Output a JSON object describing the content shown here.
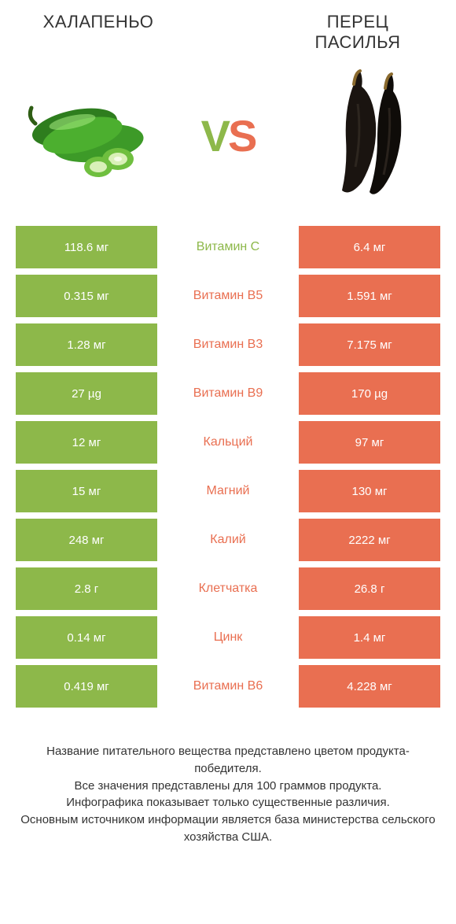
{
  "header": {
    "left_title": "ХАЛАПЕНЬО",
    "right_title": "ПЕРЕЦ\nПАСИЛЬЯ",
    "vs_v": "V",
    "vs_s": "S"
  },
  "colors": {
    "left": "#8db84a",
    "right": "#e96f51",
    "background": "#ffffff",
    "text": "#333333"
  },
  "table": {
    "rows": [
      {
        "left": "118.6 мг",
        "label": "Витамин C",
        "right": "6.4 мг",
        "winner": "left"
      },
      {
        "left": "0.315 мг",
        "label": "Витамин B5",
        "right": "1.591 мг",
        "winner": "right"
      },
      {
        "left": "1.28 мг",
        "label": "Витамин B3",
        "right": "7.175 мг",
        "winner": "right"
      },
      {
        "left": "27 µg",
        "label": "Витамин B9",
        "right": "170 µg",
        "winner": "right"
      },
      {
        "left": "12 мг",
        "label": "Кальций",
        "right": "97 мг",
        "winner": "right"
      },
      {
        "left": "15 мг",
        "label": "Магний",
        "right": "130 мг",
        "winner": "right"
      },
      {
        "left": "248 мг",
        "label": "Калий",
        "right": "2222 мг",
        "winner": "right"
      },
      {
        "left": "2.8 г",
        "label": "Клетчатка",
        "right": "26.8 г",
        "winner": "right"
      },
      {
        "left": "0.14 мг",
        "label": "Цинк",
        "right": "1.4 мг",
        "winner": "right"
      },
      {
        "left": "0.419 мг",
        "label": "Витамин B6",
        "right": "4.228 мг",
        "winner": "right"
      }
    ]
  },
  "footer": {
    "line1": "Название питательного вещества представлено цветом продукта-победителя.",
    "line2": "Все значения представлены для 100 граммов продукта.",
    "line3": "Инфографика показывает только существенные различия.",
    "line4": "Основным источником информации является база министерства сельского хозяйства США."
  }
}
